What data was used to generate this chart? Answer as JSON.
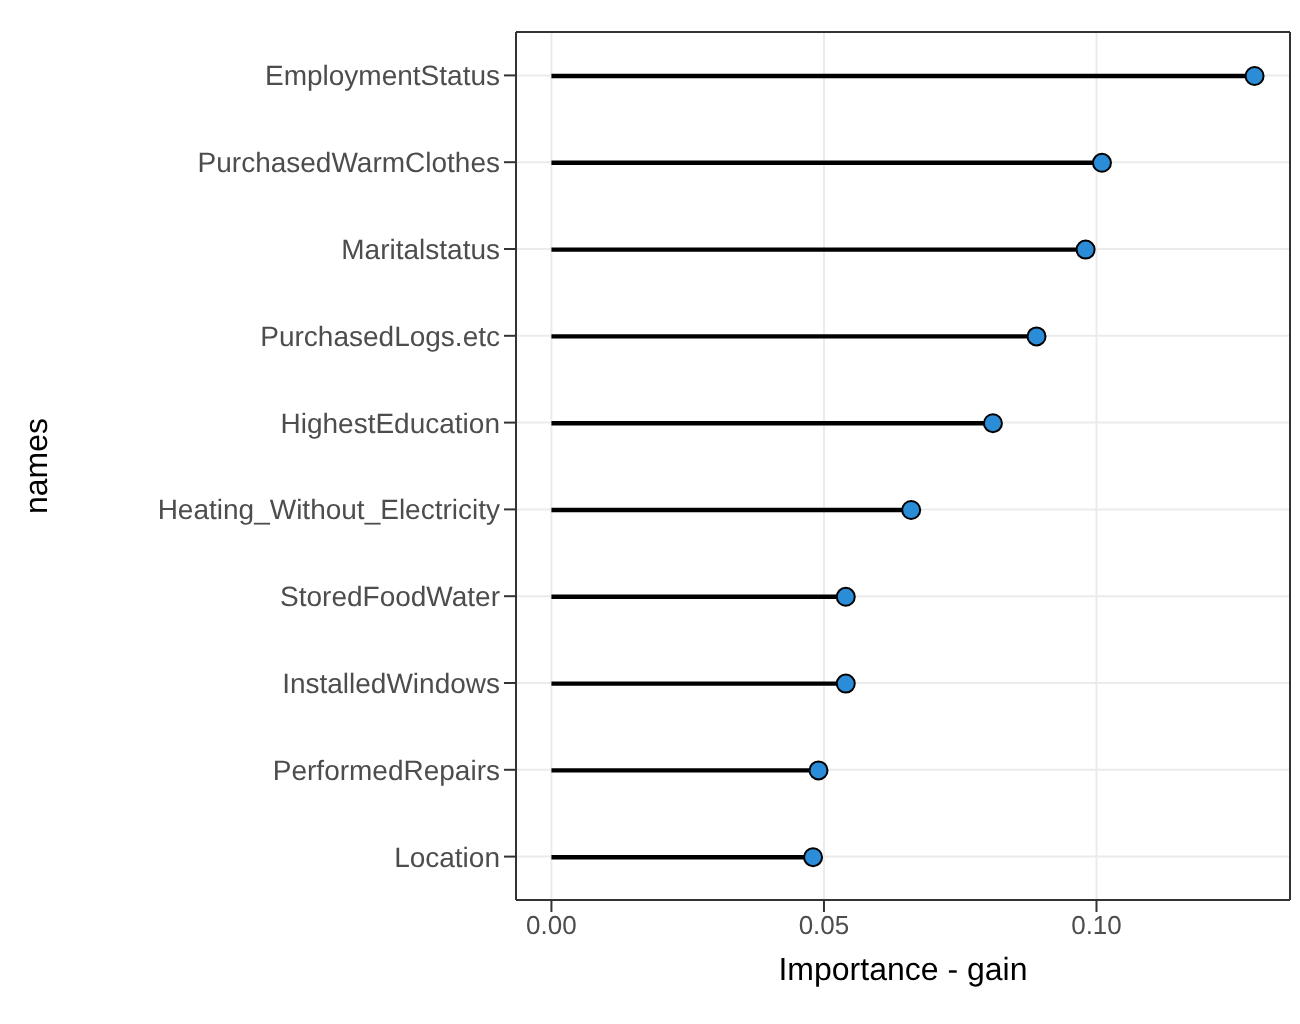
{
  "chart_data": {
    "type": "lollipop",
    "orientation": "horizontal",
    "xlabel": "Importance - gain",
    "ylabel": "names",
    "categories": [
      "EmploymentStatus",
      "PurchasedWarmClothes",
      "Maritalstatus",
      "PurchasedLogs.etc",
      "HighestEducation",
      "Heating_Without_Electricity",
      "StoredFoodWater",
      "InstalledWindows",
      "PerformedRepairs",
      "Location"
    ],
    "series": [
      {
        "color": "#2b8cd8",
        "values": [
          0.129,
          0.101,
          0.098,
          0.089,
          0.081,
          0.066,
          0.054,
          0.054,
          0.049,
          0.048
        ]
      }
    ],
    "xlim": [
      -0.0065,
      0.1355
    ],
    "xticks": [
      {
        "value": 0,
        "label": "0.00"
      },
      {
        "value": 0.05,
        "label": "0.05"
      },
      {
        "value": 0.1,
        "label": "0.10"
      }
    ],
    "grid": true,
    "marker": "circle",
    "legend": false
  }
}
